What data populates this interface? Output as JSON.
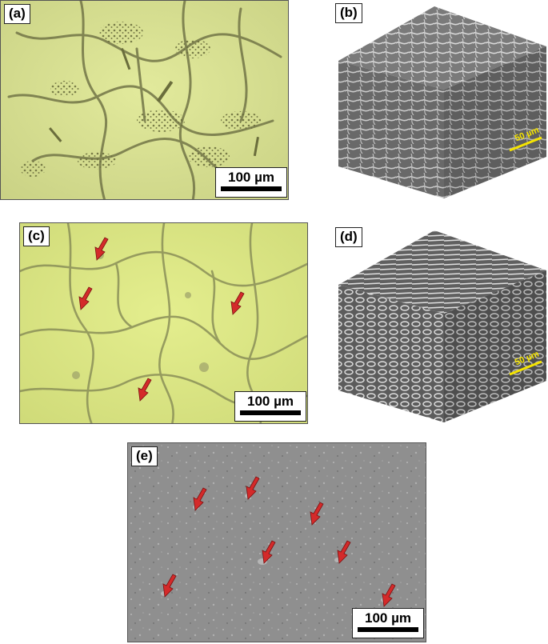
{
  "figure": {
    "panels": [
      {
        "id": "a",
        "label": "(a)",
        "type": "optical-micrograph",
        "scale_text": "100 µm"
      },
      {
        "id": "b",
        "label": "(b)",
        "type": "3d-sem-cube",
        "scale_text": "50 µm"
      },
      {
        "id": "c",
        "label": "(c)",
        "type": "optical-micrograph",
        "scale_text": "100 µm",
        "arrow_count": 4
      },
      {
        "id": "d",
        "label": "(d)",
        "type": "3d-sem-cube",
        "scale_text": "50 µm"
      },
      {
        "id": "e",
        "label": "(e)",
        "type": "sem-micrograph",
        "scale_text": "100 µm",
        "arrow_count": 7
      }
    ]
  },
  "colors": {
    "optical_bg": "#d8e29a",
    "optical_phase": "#7a7d4a",
    "sem_bg": "#8d8d8d",
    "arrow": "#d42a2a",
    "scale_yellow": "#f5e400"
  }
}
